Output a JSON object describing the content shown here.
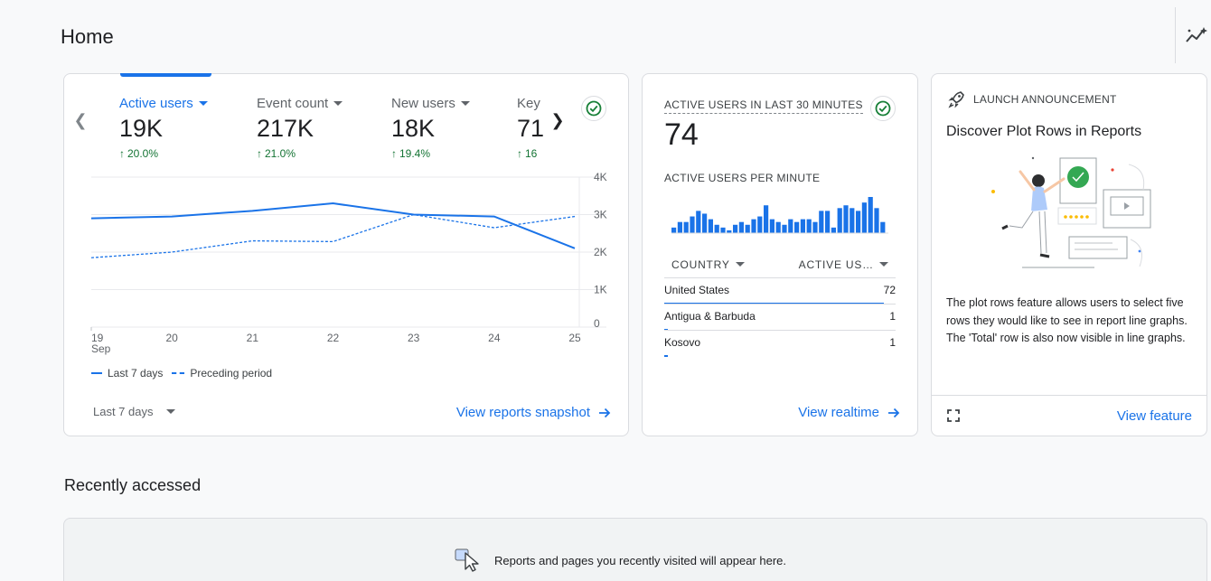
{
  "page": {
    "title": "Home"
  },
  "header": {
    "insights_icon": "insights-icon"
  },
  "overview": {
    "metrics": [
      {
        "label": "Active users",
        "value": "19K",
        "change": "20.0%",
        "active": true
      },
      {
        "label": "Event count",
        "value": "217K",
        "change": "21.0%",
        "active": false
      },
      {
        "label": "New users",
        "value": "18K",
        "change": "19.4%",
        "active": false
      },
      {
        "label": "Key",
        "value": "71",
        "change": "16",
        "active": false
      }
    ],
    "legend": {
      "current": "Last 7 days",
      "previous": "Preceding period"
    },
    "range_label": "Last 7 days",
    "link": "View reports snapshot"
  },
  "chart_data": {
    "type": "line",
    "x": [
      "19",
      "20",
      "21",
      "22",
      "23",
      "24",
      "25"
    ],
    "x_sublabel": "Sep",
    "y_ticks": [
      "0",
      "1K",
      "2K",
      "3K",
      "4K"
    ],
    "ylim": [
      0,
      4000
    ],
    "grid": true,
    "series": [
      {
        "name": "Last 7 days",
        "style": "solid",
        "values": [
          2900,
          2950,
          3100,
          3300,
          3000,
          2950,
          2100
        ]
      },
      {
        "name": "Preceding period",
        "style": "dashed",
        "values": [
          1850,
          2000,
          2300,
          2280,
          3000,
          2650,
          2950
        ]
      }
    ],
    "color": "#1a73e8"
  },
  "realtime": {
    "title": "ACTIVE USERS IN LAST 30 MINUTES",
    "value": "74",
    "per_minute_label": "ACTIVE USERS PER MINUTE",
    "per_minute": [
      2,
      4,
      4,
      6,
      8,
      7,
      5,
      3,
      2,
      1,
      3,
      4,
      3,
      5,
      6,
      10,
      5,
      4,
      3,
      5,
      4,
      5,
      5,
      4,
      8,
      8,
      2,
      9,
      10,
      9,
      8,
      11,
      13,
      9,
      4
    ],
    "col_country": "COUNTRY",
    "col_users": "ACTIVE US…",
    "rows": [
      {
        "country": "United States",
        "users": "72",
        "share": 0.97
      },
      {
        "country": "Antigua & Barbuda",
        "users": "1",
        "share": 0.014
      },
      {
        "country": "Kosovo",
        "users": "1",
        "share": 0.014
      }
    ],
    "link": "View realtime"
  },
  "launch": {
    "tag": "LAUNCH ANNOUNCEMENT",
    "title": "Discover Plot Rows in Reports",
    "body": "The plot rows feature allows users to select five rows they would like to see in report line graphs. The 'Total' row is also now visible in line graphs.",
    "link": "View feature"
  },
  "recent": {
    "title": "Recently accessed",
    "empty_message": "Reports and pages you recently visited will appear here."
  },
  "colors": {
    "accent": "#1a73e8",
    "positive": "#137333",
    "check": "#188038"
  }
}
